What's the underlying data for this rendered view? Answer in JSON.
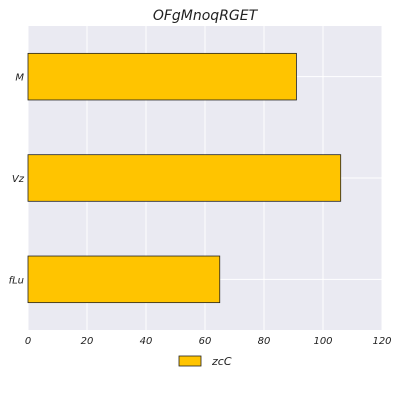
{
  "chart_data": {
    "type": "bar",
    "orientation": "horizontal",
    "title": "OFgMnoqRGET",
    "xlabel": "",
    "ylabel": "",
    "categories": [
      "M",
      "Vz",
      "fLu"
    ],
    "series": [
      {
        "name": "zcC",
        "values": [
          91,
          106,
          65
        ]
      }
    ],
    "xlim": [
      0,
      120
    ],
    "xticks": [
      "0",
      "20",
      "40",
      "60",
      "80",
      "100",
      "120"
    ],
    "grid": true,
    "legend_position": "bottom-center",
    "colors": {
      "bar": "#ffc400",
      "bar_edge": "#222222",
      "background": "#eaeaf2",
      "grid": "#ffffff"
    }
  }
}
